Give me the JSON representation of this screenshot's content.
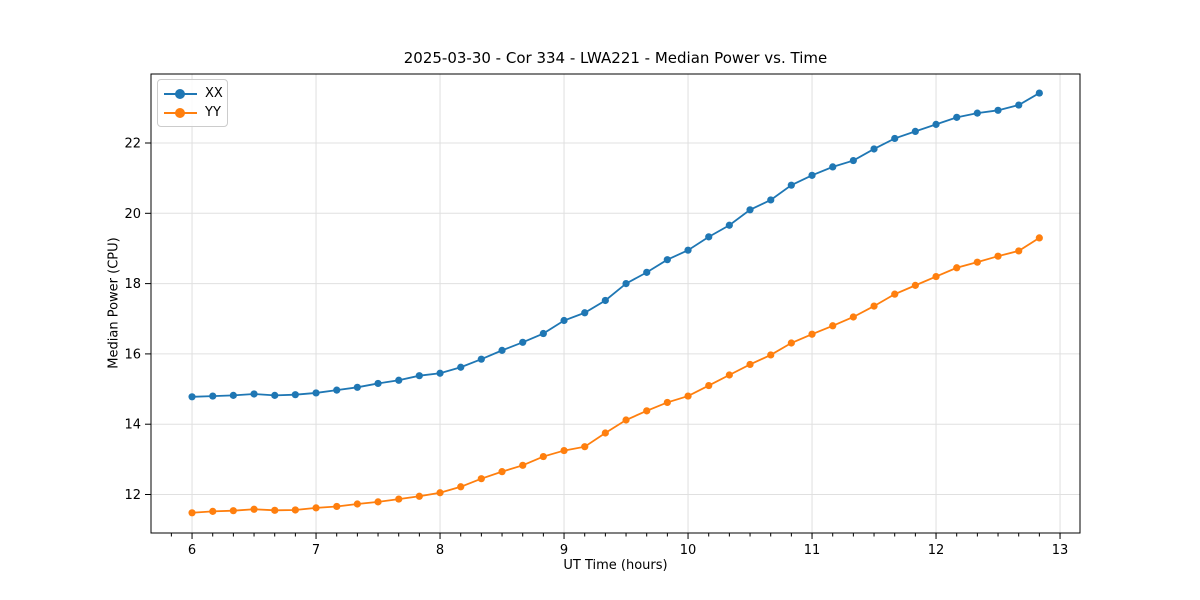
{
  "chart_data": {
    "type": "line",
    "title": "2025-03-30 - Cor 334 - LWA221 - Median Power vs. Time",
    "xlabel": "UT Time (hours)",
    "ylabel": "Median Power (CPU)",
    "xlim": [
      5.669,
      13.161
    ],
    "ylim": [
      10.905,
      23.963
    ],
    "x_ticks": [
      6,
      7,
      8,
      9,
      10,
      11,
      12,
      13
    ],
    "y_ticks": [
      12,
      14,
      16,
      18,
      20,
      22
    ],
    "x_minor_step": 0.1666667,
    "grid": true,
    "grid_color": "#e0e0e0",
    "spine_color": "#000000",
    "legend_position": "upper-left",
    "x": [
      6.0,
      6.167,
      6.333,
      6.5,
      6.667,
      6.833,
      7.0,
      7.167,
      7.333,
      7.5,
      7.667,
      7.833,
      8.0,
      8.167,
      8.333,
      8.5,
      8.667,
      8.833,
      9.0,
      9.167,
      9.333,
      9.5,
      9.667,
      9.833,
      10.0,
      10.167,
      10.333,
      10.5,
      10.667,
      10.833,
      11.0,
      11.167,
      11.333,
      11.5,
      11.667,
      11.833,
      12.0,
      12.167,
      12.333,
      12.5,
      12.667,
      12.833
    ],
    "series": [
      {
        "name": "XX",
        "color": "#1f77b4",
        "values": [
          14.78,
          14.8,
          14.82,
          14.86,
          14.82,
          14.84,
          14.89,
          14.97,
          15.05,
          15.16,
          15.25,
          15.38,
          15.45,
          15.62,
          15.85,
          16.1,
          16.33,
          16.58,
          16.95,
          17.17,
          17.52,
          18.0,
          18.32,
          18.68,
          18.95,
          19.33,
          19.66,
          20.1,
          20.38,
          20.8,
          21.08,
          21.32,
          21.5,
          21.83,
          22.13,
          22.33,
          22.53,
          22.73,
          22.85,
          22.93,
          23.08,
          23.42
        ]
      },
      {
        "name": "YY",
        "color": "#ff7f0e",
        "values": [
          11.48,
          11.52,
          11.54,
          11.58,
          11.55,
          11.56,
          11.62,
          11.66,
          11.73,
          11.79,
          11.87,
          11.95,
          12.05,
          12.22,
          12.45,
          12.65,
          12.83,
          13.08,
          13.25,
          13.36,
          13.75,
          14.12,
          14.38,
          14.62,
          14.8,
          15.1,
          15.4,
          15.7,
          15.97,
          16.31,
          16.56,
          16.8,
          17.05,
          17.36,
          17.7,
          17.95,
          18.2,
          18.45,
          18.61,
          18.78,
          18.93,
          19.3
        ]
      }
    ]
  }
}
